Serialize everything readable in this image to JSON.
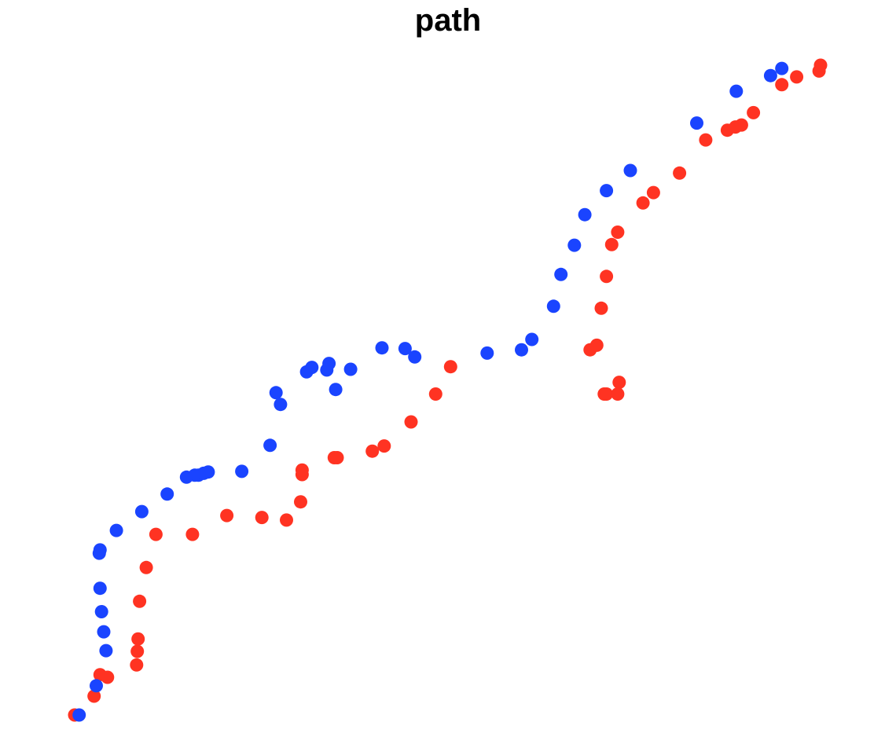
{
  "chart_data": {
    "type": "scatter",
    "title": "path",
    "xlabel": "",
    "ylabel": "",
    "axes_visible": false,
    "grid": false,
    "legend": "none",
    "xlim": [
      0,
      1
    ],
    "ylim": [
      0,
      1
    ],
    "colors": {
      "red": "#ff3322",
      "blue": "#1a44ff"
    },
    "series": [
      {
        "color": "red",
        "x": [
          0.0,
          0.026,
          0.034,
          0.044,
          0.083,
          0.084,
          0.085,
          0.087,
          0.096,
          0.109,
          0.158,
          0.204,
          0.251,
          0.284,
          0.303,
          0.305,
          0.305,
          0.348,
          0.352,
          0.399,
          0.415,
          0.451,
          0.484,
          0.504,
          0.71,
          0.713,
          0.728,
          0.73,
          0.691,
          0.7,
          0.706,
          0.713,
          0.72,
          0.728,
          0.762,
          0.776,
          0.811,
          0.846,
          0.875,
          0.886,
          0.894,
          0.91,
          0.948,
          0.968,
          0.998,
          1.0
        ],
        "y": [
          0.0,
          0.029,
          0.062,
          0.058,
          0.077,
          0.098,
          0.117,
          0.175,
          0.227,
          0.278,
          0.278,
          0.307,
          0.304,
          0.3,
          0.328,
          0.37,
          0.377,
          0.396,
          0.396,
          0.406,
          0.414,
          0.451,
          0.494,
          0.536,
          0.494,
          0.494,
          0.494,
          0.512,
          0.562,
          0.569,
          0.626,
          0.675,
          0.724,
          0.743,
          0.788,
          0.804,
          0.834,
          0.885,
          0.9,
          0.905,
          0.908,
          0.927,
          0.97,
          0.982,
          0.991,
          1.0
        ]
      },
      {
        "color": "blue",
        "x": [
          0.006,
          0.029,
          0.042,
          0.039,
          0.036,
          0.034,
          0.033,
          0.034,
          0.056,
          0.09,
          0.124,
          0.15,
          0.161,
          0.166,
          0.173,
          0.179,
          0.224,
          0.262,
          0.27,
          0.276,
          0.311,
          0.318,
          0.338,
          0.341,
          0.35,
          0.37,
          0.412,
          0.443,
          0.456,
          0.553,
          0.599,
          0.613,
          0.642,
          0.652,
          0.67,
          0.684,
          0.713,
          0.745,
          0.834,
          0.887,
          0.933,
          0.948
        ],
        "y": [
          0.0,
          0.045,
          0.099,
          0.128,
          0.159,
          0.195,
          0.249,
          0.254,
          0.284,
          0.313,
          0.34,
          0.366,
          0.369,
          0.369,
          0.372,
          0.374,
          0.375,
          0.415,
          0.496,
          0.478,
          0.528,
          0.535,
          0.531,
          0.541,
          0.501,
          0.532,
          0.565,
          0.564,
          0.551,
          0.557,
          0.562,
          0.578,
          0.629,
          0.678,
          0.723,
          0.77,
          0.807,
          0.838,
          0.911,
          0.96,
          0.984,
          0.995
        ]
      }
    ]
  }
}
